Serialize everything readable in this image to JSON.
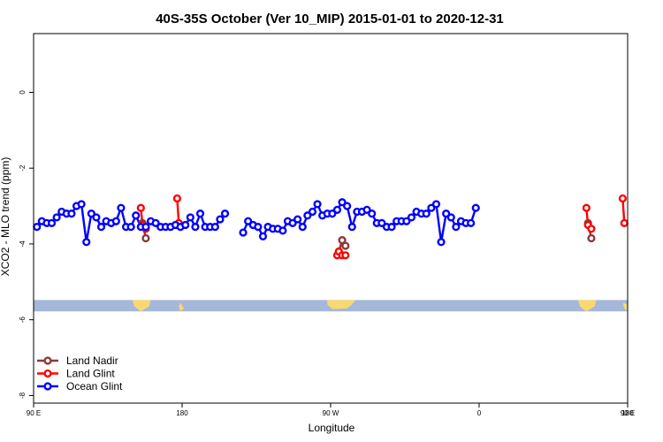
{
  "chart_data": {
    "type": "line",
    "title": "40S-35S October (Ver 10_MIP)   2015-01-01 to 2020-12-31",
    "xlabel": "Longitude",
    "ylabel": "XCO2 - MLO trend (ppm)",
    "xlim": [
      90,
      450
    ],
    "ylim": [
      -8.2,
      1.55
    ],
    "x_ticks": [
      {
        "value": 90,
        "label": "90 E"
      },
      {
        "value": 180,
        "label": "180"
      },
      {
        "value": 270,
        "label": "90 W"
      },
      {
        "value": 360,
        "label": "0"
      },
      {
        "value": 450,
        "label": "90 E"
      },
      {
        "value": 540,
        "label": "180"
      }
    ],
    "y_ticks": [
      {
        "value": 0,
        "label": "0"
      },
      {
        "value": -2,
        "label": "-2"
      },
      {
        "value": -4,
        "label": "-4"
      },
      {
        "value": -6,
        "label": "-6"
      },
      {
        "value": -8,
        "label": "-8"
      }
    ],
    "x_axis_display_max": 540,
    "grid": false,
    "legend_position": "bottom-left",
    "map_strip": {
      "y_top": -5.48,
      "y_bottom": -5.78,
      "ocean_color": "#a5b8d9",
      "land_color": "#f9d872"
    },
    "series": [
      {
        "name": "Land Nadir",
        "color": "#8b3a3a",
        "segments": [
          [
            [
              156,
              -3.45
            ],
            [
              158,
              -3.85
            ]
          ],
          [
            [
              275,
              -4.2
            ],
            [
              277,
              -3.9
            ],
            [
              279,
              -4.05
            ]
          ],
          [
            [
              426,
              -3.45
            ],
            [
              428,
              -3.85
            ]
          ]
        ]
      },
      {
        "name": "Land Glint",
        "color": "#ff0000",
        "segments": [
          [
            [
              155,
              -3.05
            ],
            [
              156,
              -3.5
            ],
            [
              158,
              -3.6
            ]
          ],
          [
            [
              177,
              -2.8
            ],
            [
              178,
              -3.45
            ]
          ],
          [
            [
              274,
              -4.3
            ],
            [
              275,
              -4.2
            ],
            [
              277,
              -4.3
            ],
            [
              279,
              -4.3
            ]
          ],
          [
            [
              425,
              -3.05
            ],
            [
              426,
              -3.5
            ],
            [
              428,
              -3.6
            ]
          ],
          [
            [
              447,
              -2.8
            ],
            [
              448,
              -3.45
            ]
          ]
        ]
      },
      {
        "name": "Ocean Glint",
        "color": "#0000ff",
        "segments": [
          [
            [
              92,
              -3.55
            ],
            [
              95,
              -3.4
            ],
            [
              98,
              -3.45
            ],
            [
              101,
              -3.45
            ],
            [
              104,
              -3.3
            ],
            [
              107,
              -3.15
            ],
            [
              110,
              -3.2
            ],
            [
              113,
              -3.2
            ],
            [
              116,
              -3.0
            ],
            [
              119,
              -2.95
            ],
            [
              122,
              -3.95
            ],
            [
              125,
              -3.2
            ],
            [
              128,
              -3.3
            ],
            [
              131,
              -3.55
            ],
            [
              134,
              -3.4
            ],
            [
              137,
              -3.45
            ],
            [
              140,
              -3.4
            ],
            [
              143,
              -3.05
            ],
            [
              146,
              -3.55
            ],
            [
              149,
              -3.55
            ],
            [
              152,
              -3.25
            ],
            [
              155,
              -3.55
            ],
            [
              158,
              -3.55
            ],
            [
              161,
              -3.4
            ],
            [
              164,
              -3.45
            ],
            [
              167,
              -3.55
            ],
            [
              170,
              -3.55
            ],
            [
              173,
              -3.55
            ],
            [
              176,
              -3.5
            ],
            [
              179,
              -3.55
            ],
            [
              182,
              -3.5
            ],
            [
              185,
              -3.3
            ],
            [
              188,
              -3.55
            ],
            [
              191,
              -3.2
            ],
            [
              194,
              -3.55
            ],
            [
              197,
              -3.55
            ],
            [
              200,
              -3.55
            ],
            [
              203,
              -3.35
            ],
            [
              206,
              -3.2
            ]
          ],
          [
            [
              217,
              -3.7
            ],
            [
              220,
              -3.4
            ],
            [
              223,
              -3.5
            ],
            [
              226,
              -3.55
            ],
            [
              229,
              -3.8
            ],
            [
              232,
              -3.55
            ],
            [
              235,
              -3.6
            ],
            [
              238,
              -3.6
            ],
            [
              241,
              -3.65
            ],
            [
              244,
              -3.4
            ],
            [
              247,
              -3.45
            ],
            [
              250,
              -3.35
            ],
            [
              253,
              -3.55
            ],
            [
              256,
              -3.25
            ],
            [
              259,
              -3.15
            ],
            [
              262,
              -2.95
            ],
            [
              265,
              -3.25
            ],
            [
              268,
              -3.2
            ],
            [
              271,
              -3.2
            ],
            [
              274,
              -3.1
            ],
            [
              277,
              -2.9
            ],
            [
              280,
              -3.0
            ],
            [
              283,
              -3.55
            ],
            [
              286,
              -3.15
            ],
            [
              289,
              -3.15
            ],
            [
              292,
              -3.1
            ],
            [
              295,
              -3.2
            ],
            [
              298,
              -3.45
            ],
            [
              301,
              -3.45
            ],
            [
              304,
              -3.55
            ],
            [
              307,
              -3.55
            ],
            [
              310,
              -3.4
            ],
            [
              313,
              -3.4
            ],
            [
              316,
              -3.4
            ],
            [
              319,
              -3.3
            ],
            [
              322,
              -3.15
            ],
            [
              325,
              -3.2
            ],
            [
              328,
              -3.2
            ],
            [
              331,
              -3.05
            ],
            [
              334,
              -2.95
            ],
            [
              337,
              -3.95
            ],
            [
              340,
              -3.2
            ],
            [
              343,
              -3.3
            ],
            [
              346,
              -3.55
            ],
            [
              349,
              -3.4
            ],
            [
              352,
              -3.45
            ],
            [
              355,
              -3.45
            ],
            [
              358,
              -3.05
            ]
          ]
        ]
      }
    ]
  }
}
